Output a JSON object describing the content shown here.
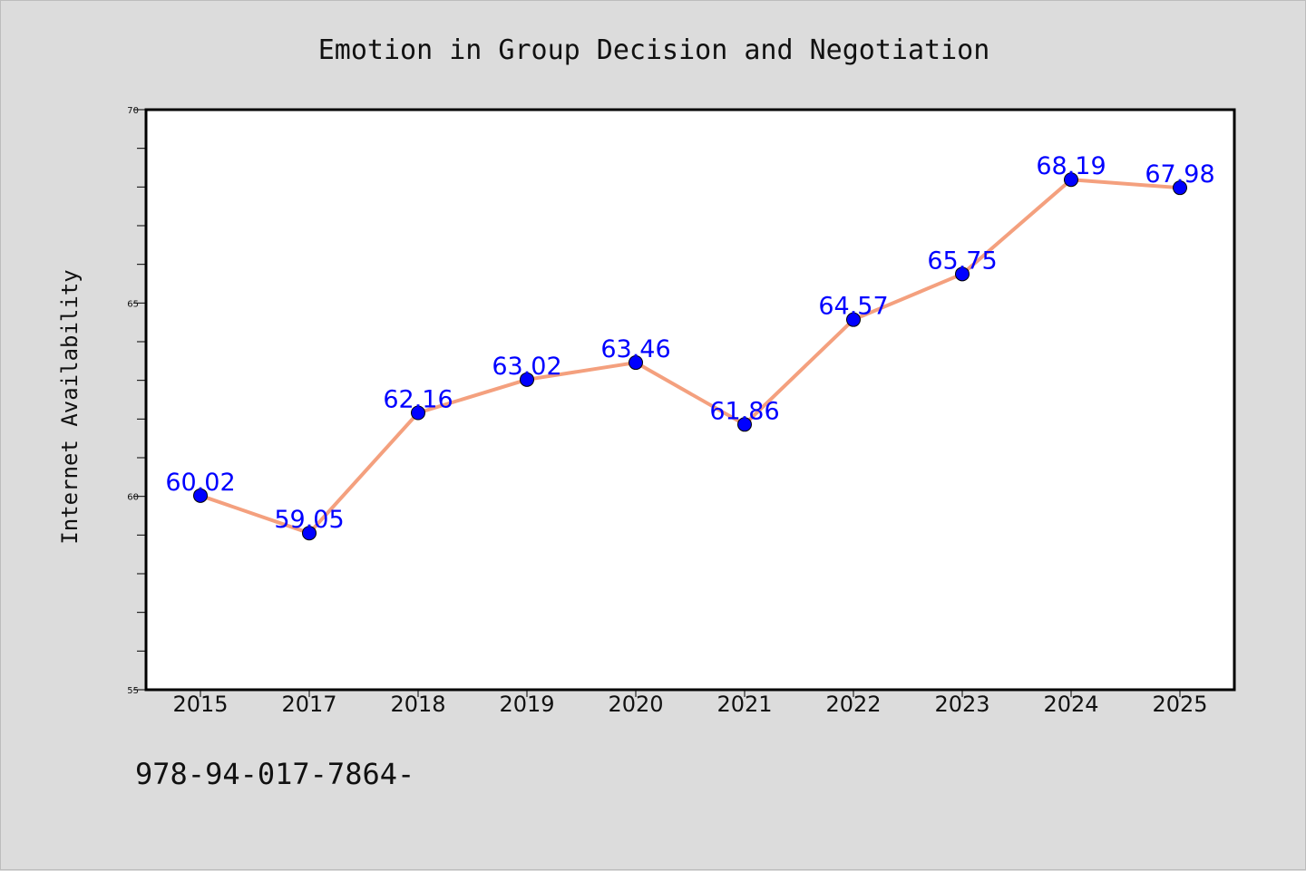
{
  "chart_data": {
    "type": "line",
    "title": "Emotion in Group Decision and Negotiation",
    "xlabel": "",
    "ylabel": "Internet Availability",
    "categories": [
      "2015",
      "2017",
      "2018",
      "2019",
      "2020",
      "2021",
      "2022",
      "2023",
      "2024",
      "2025"
    ],
    "series": [
      {
        "values": [
          60.02,
          59.05,
          62.16,
          63.02,
          63.46,
          61.86,
          64.57,
          65.75,
          68.19,
          67.98
        ],
        "data_labels": [
          "60.02",
          "59.05",
          "62.16",
          "63.02",
          "63.46",
          "61.86",
          "64.57",
          "65.75",
          "68.19",
          "67.98"
        ]
      }
    ],
    "ylim": [
      55,
      70
    ],
    "yticks": [
      55,
      60,
      65,
      70
    ],
    "ytick_labels": [
      "55",
      "60",
      "65",
      "70"
    ],
    "grid": false,
    "legend": "none",
    "colors": {
      "line": "#f4a07e",
      "marker": "#0000ff",
      "label": "#0000ff",
      "background": "#dcdcdc",
      "plot_background": "#ffffff"
    }
  },
  "footnote": "978-94-017-7864-"
}
